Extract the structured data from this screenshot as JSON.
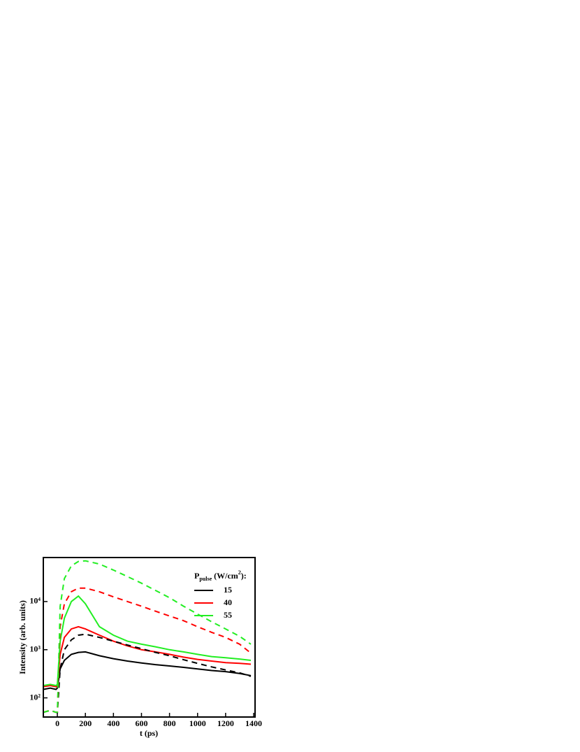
{
  "chart_data": {
    "type": "line",
    "xlabel": "t (ps)",
    "ylabel": "Intensity (arb. units)",
    "legend_title": [
      "P",
      "pulse",
      " (W/cm",
      "2",
      "):"
    ],
    "legend": "upper right",
    "log_y": true,
    "xlim": [
      -100,
      1410
    ],
    "ylim": [
      40,
      82000
    ],
    "xticks": [
      0,
      200,
      400,
      600,
      800,
      1000,
      1200,
      1400
    ],
    "yticks": [
      {
        "value": 100,
        "label": "10²"
      },
      {
        "value": 1000,
        "label": "10³"
      },
      {
        "value": 10000,
        "label": "10⁴"
      }
    ],
    "x": [
      -100,
      -50,
      -10,
      0,
      20,
      50,
      100,
      150,
      200,
      300,
      400,
      500,
      600,
      700,
      800,
      900,
      1000,
      1100,
      1200,
      1300,
      1380
    ],
    "series": [
      {
        "name": "15",
        "color": "#000000",
        "dash": false,
        "values": [
          150,
          160,
          150,
          160,
          400,
          600,
          800,
          880,
          900,
          750,
          650,
          580,
          530,
          490,
          460,
          430,
          400,
          370,
          350,
          320,
          290
        ]
      },
      {
        "name": "40",
        "color": "#ff0000",
        "dash": false,
        "values": [
          170,
          180,
          170,
          180,
          800,
          1800,
          2700,
          3000,
          2700,
          2000,
          1500,
          1200,
          1000,
          900,
          800,
          700,
          630,
          580,
          540,
          520,
          500
        ]
      },
      {
        "name": "55",
        "color": "#22ee22",
        "dash": false,
        "values": [
          180,
          190,
          180,
          190,
          1500,
          4500,
          10000,
          13000,
          9000,
          3000,
          2000,
          1500,
          1300,
          1150,
          1000,
          900,
          800,
          720,
          680,
          640,
          600
        ]
      },
      {
        "color": "#000000",
        "dash": true,
        "values": [
          50,
          55,
          50,
          50,
          400,
          1000,
          1600,
          2000,
          2100,
          1800,
          1500,
          1250,
          1050,
          880,
          750,
          620,
          520,
          440,
          380,
          330,
          280
        ]
      },
      {
        "color": "#ff0000",
        "dash": true,
        "values": [
          50,
          55,
          50,
          50,
          3000,
          9000,
          16000,
          19000,
          19000,
          16000,
          12500,
          10000,
          8000,
          6300,
          5000,
          4000,
          3000,
          2300,
          1800,
          1300,
          850
        ]
      },
      {
        "color": "#22ee22",
        "dash": true,
        "values": [
          50,
          55,
          50,
          50,
          8000,
          30000,
          55000,
          68000,
          70000,
          60000,
          45000,
          33000,
          24000,
          17000,
          12000,
          8000,
          5500,
          3800,
          2700,
          1900,
          1300
        ]
      }
    ]
  }
}
